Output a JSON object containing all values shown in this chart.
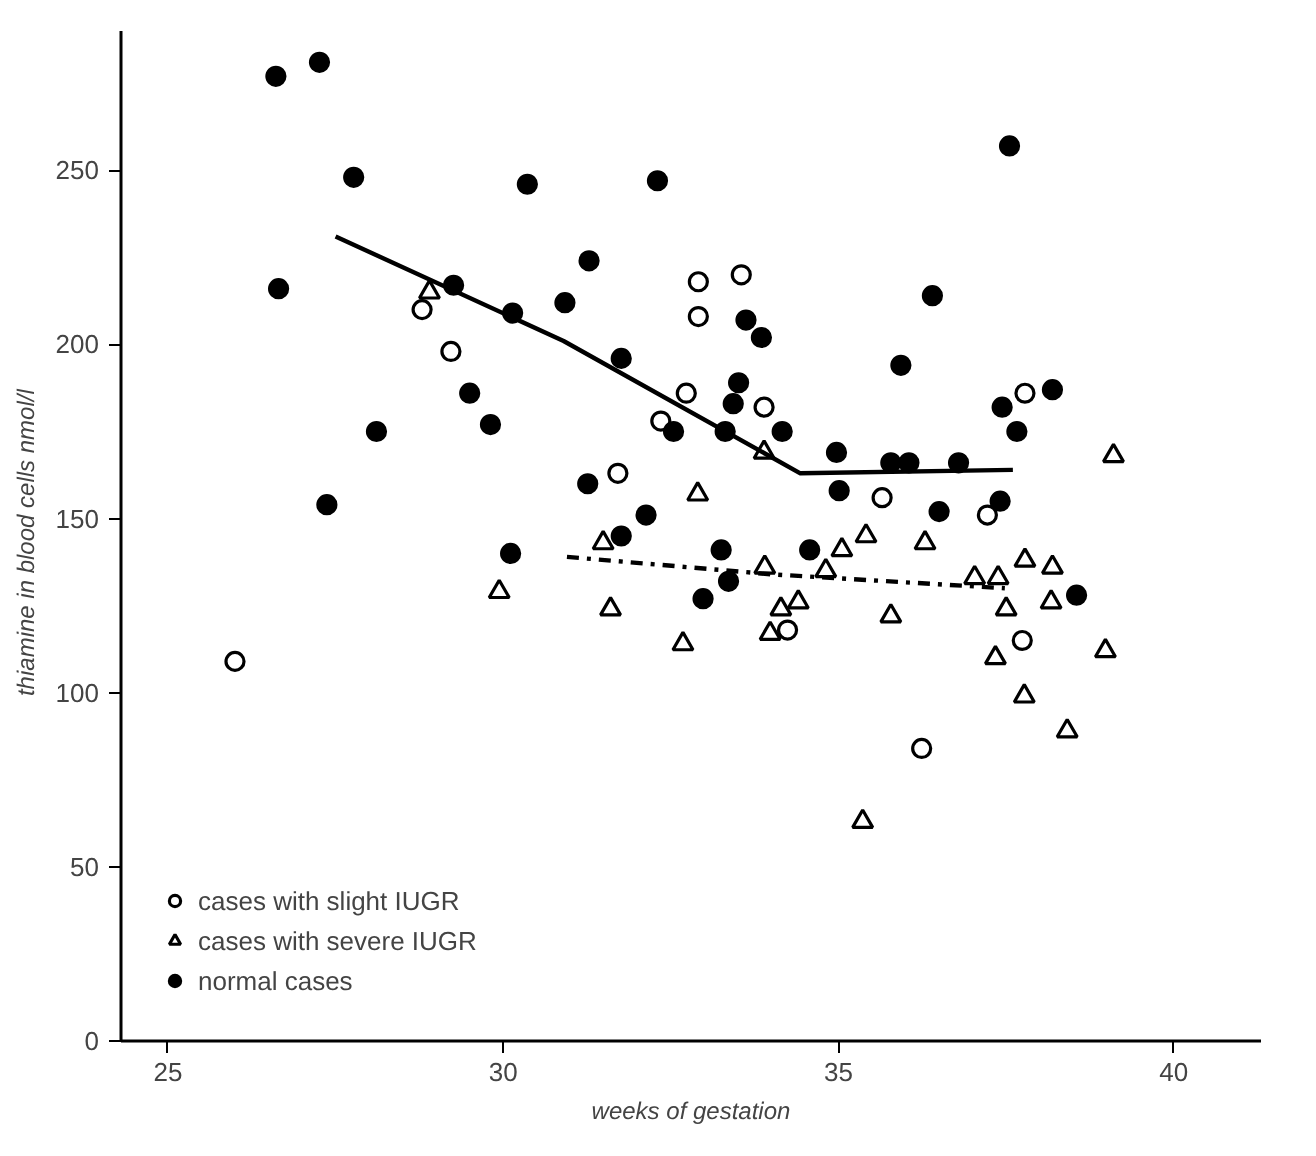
{
  "chart_data": {
    "type": "scatter",
    "xlabel": "weeks of gestation",
    "ylabel": "thiamine in blood cells   nmol/l",
    "xlim": [
      24.3,
      41.3
    ],
    "ylim": [
      0,
      290
    ],
    "xticks": [
      25,
      30,
      35,
      40
    ],
    "yticks": [
      0,
      50,
      100,
      150,
      200,
      250
    ],
    "grid": false,
    "legend": "bottom left",
    "series": [
      {
        "name": "cases with slight IUGR",
        "color": "#ffffff",
        "marker": "circle",
        "x": [
          26.0,
          28.79,
          29.22,
          31.71,
          32.35,
          32.73,
          32.91,
          32.91,
          33.55,
          33.89,
          34.24,
          35.65,
          36.24,
          37.22,
          37.74,
          37.78
        ],
        "values": [
          109,
          210,
          198,
          163,
          178,
          186,
          218,
          208,
          220,
          182,
          118,
          156,
          84,
          151,
          115,
          186
        ]
      },
      {
        "name": "cases with severe IUGR",
        "color": "#ffffff",
        "marker": "triangle",
        "x": [
          28.9,
          29.94,
          31.49,
          31.6,
          32.68,
          32.9,
          33.89,
          33.9,
          33.98,
          34.14,
          34.4,
          34.81,
          35.05,
          35.36,
          35.41,
          35.78,
          36.29,
          37.03,
          37.34,
          37.38,
          37.5,
          37.77,
          37.78,
          38.17,
          38.19,
          38.41,
          38.98,
          39.1
        ],
        "values": [
          215,
          129,
          143,
          124,
          114,
          157,
          169,
          136,
          117,
          124,
          126,
          135,
          141,
          63,
          145,
          122,
          143,
          133,
          110,
          133,
          124,
          99,
          138,
          126,
          136,
          89,
          112,
          168
        ]
      },
      {
        "name": "normal cases",
        "color": "#000000",
        "marker": "circle",
        "x": [
          26.61,
          26.65,
          27.26,
          27.37,
          27.77,
          28.11,
          29.26,
          29.5,
          29.81,
          30.11,
          30.14,
          30.36,
          30.92,
          31.26,
          31.28,
          31.76,
          31.76,
          32.13,
          32.3,
          32.54,
          32.98,
          33.25,
          33.31,
          33.36,
          33.43,
          33.51,
          33.62,
          33.85,
          34.16,
          34.57,
          34.97,
          35.01,
          35.78,
          35.93,
          36.05,
          36.4,
          36.5,
          36.79,
          37.41,
          37.44,
          37.55,
          37.66,
          38.19,
          38.55
        ],
        "values": [
          277,
          216,
          281,
          154,
          248,
          175,
          217,
          186,
          177,
          140,
          209,
          246,
          212,
          160,
          224,
          196,
          145,
          151,
          247,
          175,
          127,
          141,
          175,
          132,
          183,
          189,
          207,
          202,
          175,
          141,
          169,
          158,
          166,
          194,
          166,
          214,
          152,
          166,
          155,
          182,
          257,
          175,
          187,
          128
        ]
      },
      {
        "type": "line",
        "color": "#000000",
        "line_style": "solid",
        "x": [
          27.5,
          30.9,
          34.43,
          37.6
        ],
        "values": [
          231,
          201,
          163,
          164
        ]
      },
      {
        "type": "line",
        "color": "#000000",
        "line_style": "dashdot",
        "x": [
          30.95,
          34.0,
          37.48
        ],
        "values": [
          139,
          134,
          130
        ]
      }
    ]
  }
}
